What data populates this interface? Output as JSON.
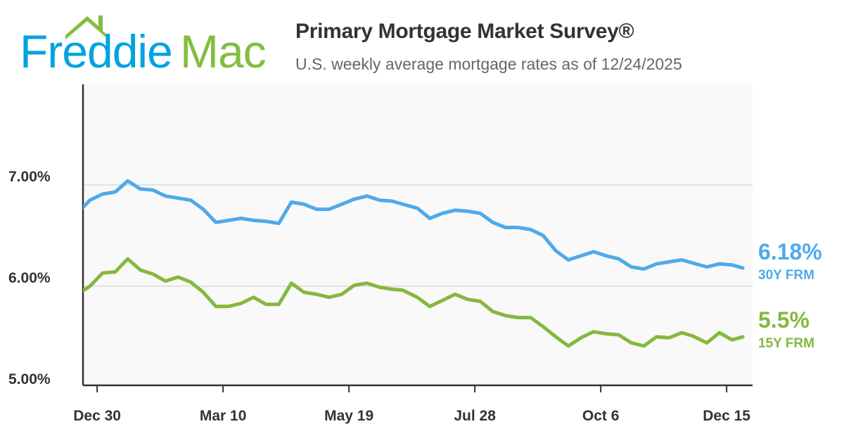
{
  "header": {
    "logo_text": "Freddie Mac",
    "title": "Primary Mortgage Market Survey®",
    "subtitle": "U.S. weekly average mortgage rates as of 12/24/2025"
  },
  "colors": {
    "frm30": "#4eaaea",
    "frm15": "#85b83f",
    "logo_blue": "#00a3e0",
    "logo_green": "#84bd41",
    "plot_bg": "#f9f9f9",
    "grid": "#e2e2e2"
  },
  "end_labels": {
    "frm30_value": "6.18%",
    "frm30_name": "30Y FRM",
    "frm15_value": "5.5%",
    "frm15_name": "15Y FRM"
  },
  "chart_data": {
    "type": "line",
    "title": "Primary Mortgage Market Survey®",
    "subtitle": "U.S. weekly average mortgage rates as of 12/24/2025",
    "x": [
      "2024-12-19",
      "2024-12-26",
      "2025-01-02",
      "2025-01-09",
      "2025-01-16",
      "2025-01-23",
      "2025-01-30",
      "2025-02-06",
      "2025-02-13",
      "2025-02-20",
      "2025-02-27",
      "2025-03-06",
      "2025-03-13",
      "2025-03-20",
      "2025-03-27",
      "2025-04-03",
      "2025-04-10",
      "2025-04-17",
      "2025-04-24",
      "2025-05-01",
      "2025-05-08",
      "2025-05-15",
      "2025-05-22",
      "2025-05-29",
      "2025-06-05",
      "2025-06-12",
      "2025-06-18",
      "2025-06-26",
      "2025-07-03",
      "2025-07-10",
      "2025-07-17",
      "2025-07-24",
      "2025-07-31",
      "2025-08-07",
      "2025-08-14",
      "2025-08-21",
      "2025-08-28",
      "2025-09-04",
      "2025-09-11",
      "2025-09-18",
      "2025-09-25",
      "2025-10-02",
      "2025-10-09",
      "2025-10-16",
      "2025-10-23",
      "2025-10-30",
      "2025-11-06",
      "2025-11-13",
      "2025-11-20",
      "2025-11-26",
      "2025-12-04",
      "2025-12-11",
      "2025-12-18",
      "2025-12-24"
    ],
    "series": [
      {
        "name": "30Y FRM",
        "color": "#4eaaea",
        "values": [
          6.72,
          6.85,
          6.91,
          6.93,
          7.04,
          6.96,
          6.95,
          6.89,
          6.87,
          6.85,
          6.76,
          6.63,
          6.65,
          6.67,
          6.65,
          6.64,
          6.62,
          6.83,
          6.81,
          6.76,
          6.76,
          6.81,
          6.86,
          6.89,
          6.85,
          6.84,
          6.81,
          6.77,
          6.67,
          6.72,
          6.75,
          6.74,
          6.72,
          6.63,
          6.58,
          6.58,
          6.56,
          6.5,
          6.35,
          6.26,
          6.3,
          6.34,
          6.3,
          6.27,
          6.19,
          6.17,
          6.22,
          6.24,
          6.26,
          6.23,
          6.19,
          6.22,
          6.21,
          6.18
        ]
      },
      {
        "name": "15Y FRM",
        "color": "#85b83f",
        "values": [
          5.92,
          6.0,
          6.13,
          6.14,
          6.27,
          6.16,
          6.12,
          6.05,
          6.09,
          6.04,
          5.94,
          5.8,
          5.8,
          5.83,
          5.89,
          5.82,
          5.82,
          6.03,
          5.94,
          5.92,
          5.89,
          5.92,
          6.01,
          6.03,
          5.99,
          5.97,
          5.96,
          5.89,
          5.8,
          5.86,
          5.92,
          5.87,
          5.85,
          5.75,
          5.71,
          5.69,
          5.69,
          5.6,
          5.5,
          5.41,
          5.49,
          5.55,
          5.53,
          5.52,
          5.44,
          5.41,
          5.5,
          5.49,
          5.54,
          5.51,
          5.44,
          5.54,
          5.47,
          5.5
        ]
      }
    ],
    "y_ticks": [
      "5.00%",
      "6.00%",
      "7.00%"
    ],
    "y_tick_values": [
      5,
      6,
      7
    ],
    "x_ticks": [
      "Dec 30",
      "Mar 10",
      "May 19",
      "Jul 28",
      "Oct 6",
      "Dec 15"
    ],
    "x_tick_dates": [
      "2024-12-30",
      "2025-03-10",
      "2025-05-19",
      "2025-07-28",
      "2025-10-06",
      "2025-12-15"
    ],
    "ylim": [
      5.0,
      8.0
    ],
    "grid": "horizontal",
    "xlabel": "",
    "ylabel": ""
  }
}
